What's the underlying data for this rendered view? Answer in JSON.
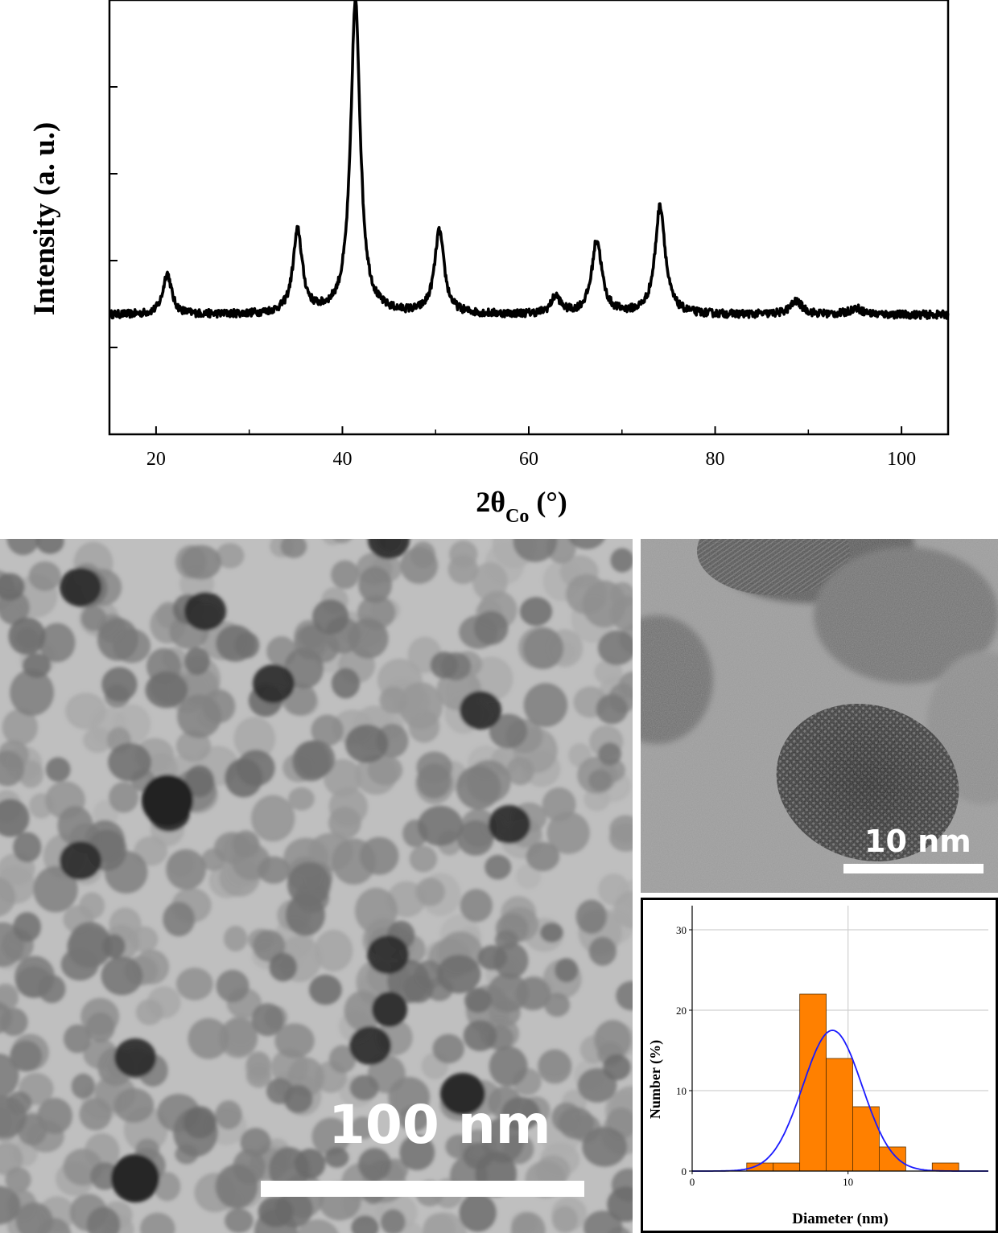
{
  "xrd_chart": {
    "chart_data": {
      "type": "line",
      "xlabel_main": "2θ",
      "xlabel_sub": "Co",
      "xlabel_unit": "(°)",
      "ylabel": "Intensity (a. u.)",
      "xlim": [
        15,
        105
      ],
      "ylim": [
        0,
        100
      ],
      "x_ticks": [
        "20",
        "40",
        "60",
        "80",
        "100"
      ],
      "x_tick_values": [
        20,
        40,
        60,
        80,
        100
      ],
      "baseline": 27.5,
      "peaks": [
        {
          "x": 21.2,
          "height": 9.5,
          "width": 0.55
        },
        {
          "x": 35.2,
          "height": 19,
          "width": 0.6
        },
        {
          "x": 41.4,
          "height": 72,
          "width": 0.62
        },
        {
          "x": 50.4,
          "height": 19,
          "width": 0.62
        },
        {
          "x": 62.9,
          "height": 4,
          "width": 0.6
        },
        {
          "x": 67.3,
          "height": 17,
          "width": 0.65
        },
        {
          "x": 74.1,
          "height": 25,
          "width": 0.65
        },
        {
          "x": 88.7,
          "height": 3,
          "width": 0.8
        },
        {
          "x": 95.1,
          "height": 1.5,
          "width": 0.8
        }
      ],
      "noise": 0.9,
      "grid": false
    }
  },
  "tem_large": {
    "scale_label": "100 nm",
    "scale_bar_nm": 100
  },
  "tem_hr": {
    "scale_label": "10 nm",
    "scale_bar_nm": 10
  },
  "histogram": {
    "chart_data": {
      "type": "bar",
      "xlabel": "Diameter (nm)",
      "ylabel": "Number (%)",
      "xlim": [
        0,
        19
      ],
      "ylim": [
        0,
        33
      ],
      "x_ticks": [
        "0",
        "10"
      ],
      "x_tick_values": [
        0,
        10
      ],
      "y_ticks": [
        "0",
        "10",
        "20",
        "30"
      ],
      "y_tick_values": [
        0,
        10,
        20,
        30
      ],
      "bins": [
        {
          "from": 3.5,
          "to": 5.2,
          "value": 1
        },
        {
          "from": 5.2,
          "to": 6.9,
          "value": 1
        },
        {
          "from": 6.9,
          "to": 8.6,
          "value": 22
        },
        {
          "from": 8.6,
          "to": 10.3,
          "value": 14
        },
        {
          "from": 10.3,
          "to": 12.0,
          "value": 8
        },
        {
          "from": 12.0,
          "to": 13.7,
          "value": 3
        },
        {
          "from": 13.7,
          "to": 15.4,
          "value": 0
        },
        {
          "from": 15.4,
          "to": 17.1,
          "value": 1
        }
      ],
      "fit": {
        "type": "gaussian",
        "mean": 9.0,
        "sigma": 1.9,
        "peak": 17.5
      },
      "grid": true,
      "colors": {
        "bar": "#ff8000",
        "fit": "#1a1aff"
      }
    }
  }
}
